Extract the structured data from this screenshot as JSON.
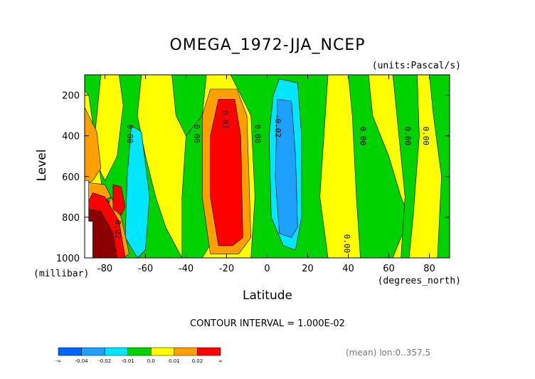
{
  "chart_data": {
    "type": "heatmap",
    "title": "OMEGA_1972-JJA_NCEP",
    "units": "(units:Pascal/s)",
    "xlabel": "Latitude",
    "ylabel": "Level",
    "x_unit": "(degrees_north)",
    "y_unit": "(millibar)",
    "xlim": [
      -90,
      90
    ],
    "ylim": [
      1000,
      100
    ],
    "x_ticks": [
      "-80",
      "-60",
      "-40",
      "-20",
      "0",
      "20",
      "40",
      "60",
      "80"
    ],
    "x_tick_values": [
      -80,
      -60,
      -40,
      -20,
      0,
      20,
      40,
      60,
      80
    ],
    "y_ticks": [
      "200",
      "400",
      "600",
      "800",
      "1000"
    ],
    "y_tick_values": [
      200,
      400,
      600,
      800,
      1000
    ],
    "contour_interval_text": "CONTOUR INTERVAL = 1.000E-02",
    "footer_text": "(mean) lon:0..357.5",
    "contour_labels": [
      {
        "text": "0.00",
        "lat": -69,
        "lev": 390
      },
      {
        "text": "0.00",
        "lat": -36,
        "lev": 390
      },
      {
        "text": "0.02",
        "lat": -22,
        "lev": 320
      },
      {
        "text": "0.00",
        "lat": -6,
        "lev": 390
      },
      {
        "text": "-0.02",
        "lat": 4,
        "lev": 350
      },
      {
        "text": "0.00",
        "lat": 46,
        "lev": 400
      },
      {
        "text": "0.00",
        "lat": 68,
        "lev": 400
      },
      {
        "text": "0.00",
        "lat": 77,
        "lev": 400
      },
      {
        "text": "0.00",
        "lat": 38,
        "lev": 930
      },
      {
        "text": "0.02",
        "lat": -75,
        "lev": 860
      }
    ],
    "colorbar": {
      "colors": [
        "#0064ff",
        "#1ea0ff",
        "#00e6ff",
        "#00d200",
        "#ffff00",
        "#ffa000",
        "#ff0000"
      ],
      "labels": [
        "-∞",
        "-0.04",
        "-0.02",
        "-0.01",
        "0.0",
        "0.01",
        "0.02",
        "∞"
      ]
    },
    "regions": [
      {
        "color": "#ffff00",
        "shape": "rect",
        "lat": [
          -90,
          90
        ],
        "lev": [
          100,
          1000
        ]
      },
      {
        "color": "#00d200",
        "shape": "poly",
        "pts": [
          [
            -90,
            100
          ],
          [
            -62,
            100
          ],
          [
            -64,
            300
          ],
          [
            -60,
            500
          ],
          [
            -55,
            700
          ],
          [
            -50,
            850
          ],
          [
            -42,
            1000
          ],
          [
            -72,
            1000
          ],
          [
            -78,
            900
          ],
          [
            -80,
            750
          ],
          [
            -88,
            200
          ],
          [
            -90,
            180
          ]
        ]
      },
      {
        "color": "#ffff00",
        "shape": "poly",
        "pts": [
          [
            -82,
            100
          ],
          [
            -73,
            100
          ],
          [
            -71,
            250
          ],
          [
            -74,
            500
          ],
          [
            -80,
            620
          ],
          [
            -86,
            500
          ]
        ]
      },
      {
        "color": "#00d200",
        "shape": "poly",
        "pts": [
          [
            -47,
            100
          ],
          [
            -30,
            100
          ],
          [
            -32,
            300
          ],
          [
            -40,
            400
          ],
          [
            -45,
            300
          ]
        ]
      },
      {
        "color": "#00d200",
        "shape": "poly",
        "pts": [
          [
            -40,
            400
          ],
          [
            -32,
            300
          ],
          [
            -24,
            700
          ],
          [
            -26,
            900
          ],
          [
            -32,
            1000
          ],
          [
            -42,
            1000
          ],
          [
            -42,
            700
          ]
        ]
      },
      {
        "color": "#00d200",
        "shape": "poly",
        "pts": [
          [
            -18,
            100
          ],
          [
            30,
            100
          ],
          [
            28,
            400
          ],
          [
            26,
            700
          ],
          [
            30,
            1000
          ],
          [
            -8,
            1000
          ],
          [
            -6,
            700
          ],
          [
            -8,
            300
          ]
        ]
      },
      {
        "color": "#00d200",
        "shape": "poly",
        "pts": [
          [
            40,
            100
          ],
          [
            50,
            100
          ],
          [
            52,
            300
          ],
          [
            60,
            500
          ],
          [
            66,
            700
          ],
          [
            70,
            800
          ],
          [
            62,
            1000
          ],
          [
            46,
            1000
          ],
          [
            44,
            700
          ],
          [
            42,
            300
          ]
        ]
      },
      {
        "color": "#00d200",
        "shape": "poly",
        "pts": [
          [
            62,
            100
          ],
          [
            74,
            100
          ],
          [
            75,
            400
          ],
          [
            72,
            800
          ],
          [
            70,
            1000
          ],
          [
            66,
            1000
          ],
          [
            68,
            700
          ]
        ]
      },
      {
        "color": "#00d200",
        "shape": "poly",
        "pts": [
          [
            80,
            100
          ],
          [
            90,
            100
          ],
          [
            90,
            1000
          ],
          [
            84,
            1000
          ],
          [
            86,
            600
          ],
          [
            82,
            300
          ]
        ]
      },
      {
        "color": "#ffa000",
        "shape": "poly",
        "pts": [
          [
            -90,
            260
          ],
          [
            -84,
            380
          ],
          [
            -82,
            560
          ],
          [
            -86,
            620
          ],
          [
            -90,
            640
          ]
        ]
      },
      {
        "color": "#00e6ff",
        "shape": "poly",
        "pts": [
          [
            -67,
            350
          ],
          [
            -62,
            380
          ],
          [
            -58,
            700
          ],
          [
            -60,
            960
          ],
          [
            -64,
            1000
          ],
          [
            -70,
            900
          ],
          [
            -69,
            600
          ]
        ]
      },
      {
        "color": "#00e6ff",
        "shape": "poly",
        "pts": [
          [
            6,
            120
          ],
          [
            15,
            140
          ],
          [
            17,
            400
          ],
          [
            17,
            800
          ],
          [
            14,
            960
          ],
          [
            8,
            940
          ],
          [
            2,
            800
          ],
          [
            1,
            400
          ],
          [
            3,
            200
          ]
        ]
      },
      {
        "color": "#1ea0ff",
        "shape": "poly",
        "pts": [
          [
            5,
            220
          ],
          [
            12,
            230
          ],
          [
            14,
            500
          ],
          [
            15,
            850
          ],
          [
            12,
            900
          ],
          [
            6,
            880
          ],
          [
            4,
            600
          ]
        ]
      },
      {
        "color": "#ffa000",
        "shape": "poly",
        "pts": [
          [
            -28,
            170
          ],
          [
            -15,
            170
          ],
          [
            -10,
            300
          ],
          [
            -8,
            900
          ],
          [
            -14,
            980
          ],
          [
            -28,
            980
          ],
          [
            -32,
            700
          ],
          [
            -32,
            300
          ]
        ]
      },
      {
        "color": "#ff0000",
        "shape": "poly",
        "pts": [
          [
            -24,
            220
          ],
          [
            -16,
            220
          ],
          [
            -13,
            400
          ],
          [
            -12,
            900
          ],
          [
            -17,
            940
          ],
          [
            -24,
            940
          ],
          [
            -28,
            700
          ],
          [
            -28,
            400
          ]
        ]
      },
      {
        "color": "#ffa000",
        "shape": "poly",
        "pts": [
          [
            -88,
            630
          ],
          [
            -80,
            640
          ],
          [
            -72,
            800
          ],
          [
            -68,
            980
          ],
          [
            -71,
            1000
          ],
          [
            -90,
            1000
          ]
        ]
      },
      {
        "color": "#ff0000",
        "shape": "poly",
        "pts": [
          [
            -86,
            680
          ],
          [
            -80,
            700
          ],
          [
            -73,
            820
          ],
          [
            -70,
            1000
          ],
          [
            -88,
            1000
          ],
          [
            -90,
            760
          ]
        ]
      },
      {
        "color": "#ff0000",
        "shape": "poly",
        "pts": [
          [
            -76,
            640
          ],
          [
            -72,
            650
          ],
          [
            -70,
            750
          ],
          [
            -72,
            790
          ],
          [
            -76,
            760
          ]
        ]
      },
      {
        "color": "#8b0000",
        "shape": "poly",
        "pts": [
          [
            -88,
            760
          ],
          [
            -82,
            770
          ],
          [
            -76,
            880
          ],
          [
            -74,
            1000
          ],
          [
            -88,
            1000
          ]
        ]
      },
      {
        "color": "#ffffff",
        "shape": "poly",
        "pts": [
          [
            -90,
            620
          ],
          [
            -88,
            620
          ],
          [
            -88,
            820
          ],
          [
            -86,
            820
          ],
          [
            -86,
            1000
          ],
          [
            -90,
            1000
          ]
        ]
      },
      {
        "color": "#00d200",
        "shape": "poly",
        "pts": [
          [
            -79,
            710
          ],
          [
            -77,
            700
          ],
          [
            -78,
            730
          ]
        ]
      }
    ]
  }
}
